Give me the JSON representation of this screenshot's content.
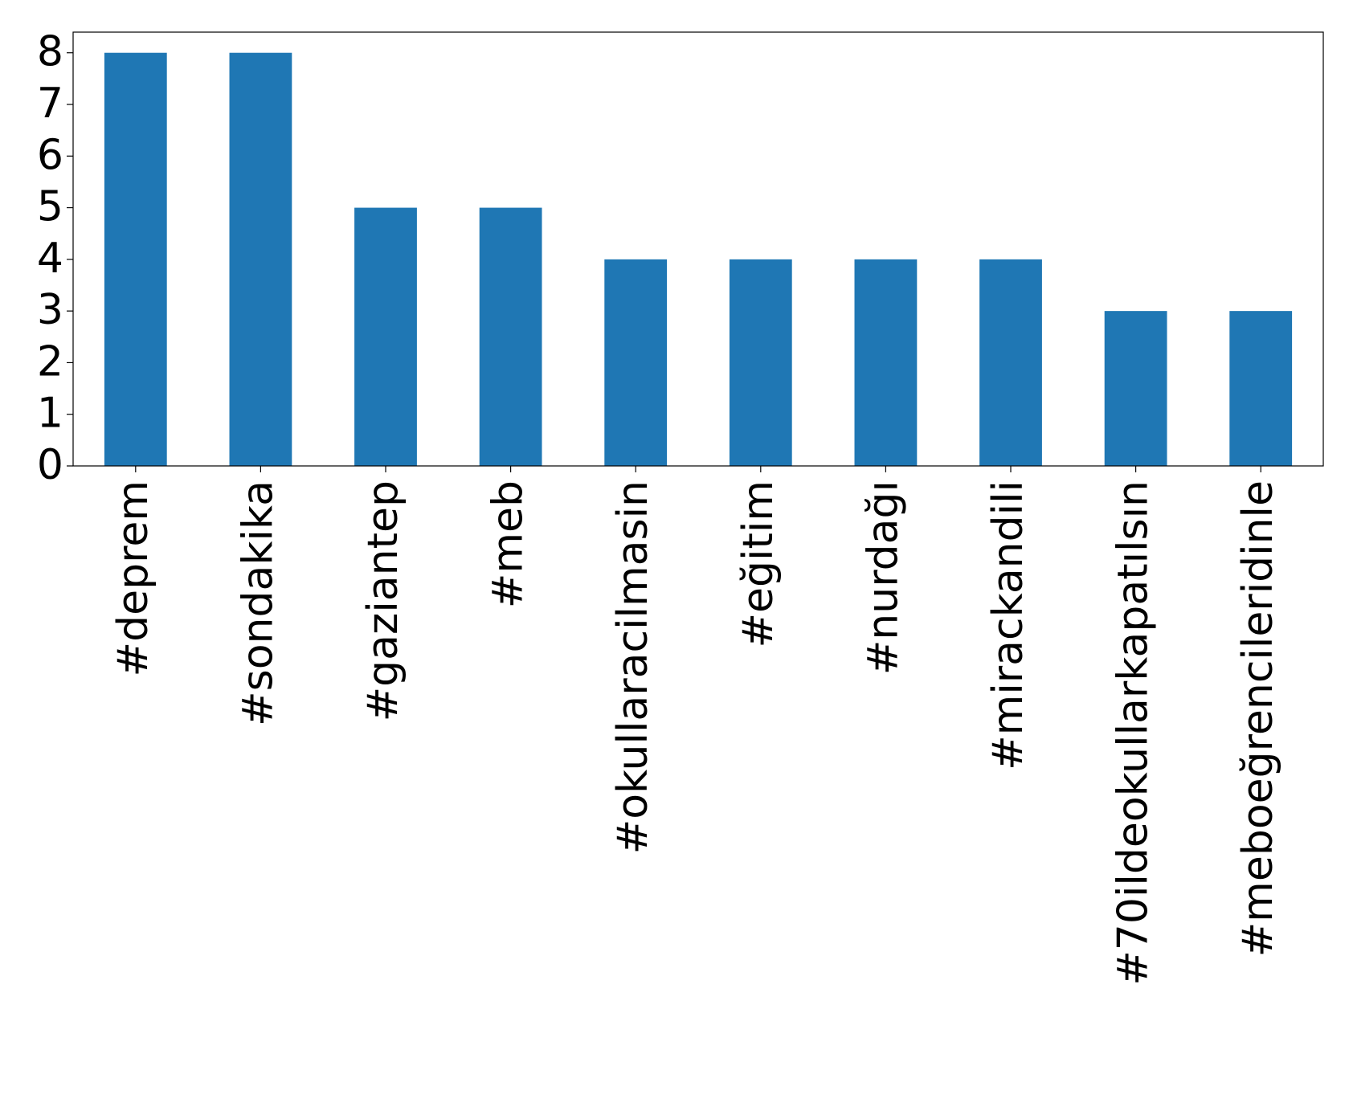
{
  "chart_data": {
    "type": "bar",
    "categories": [
      "#deprem",
      "#sondakika",
      "#gaziantep",
      "#meb",
      "#okullaracilmasin",
      "#eğitim",
      "#nurdağı",
      "#mirackandili",
      "#70ildeokullarkapatılsın",
      "#meboeğrencileridinle"
    ],
    "values": [
      8,
      8,
      5,
      5,
      4,
      4,
      4,
      4,
      3,
      3
    ],
    "color": "#1f77b4",
    "ylim": [
      0,
      8.4
    ],
    "yticks": [
      0,
      1,
      2,
      3,
      4,
      5,
      6,
      7,
      8
    ],
    "grid": false
  }
}
